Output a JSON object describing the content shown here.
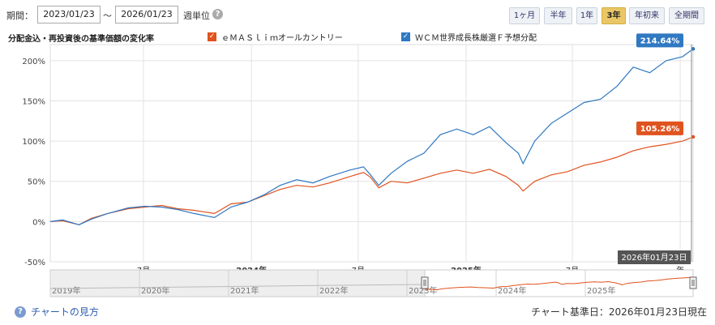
{
  "controls": {
    "period_label": "期間：",
    "start_date": "2023/01/23",
    "tilde": "～",
    "end_date": "2026/01/23",
    "unit_label": "週単位",
    "help_symbol": "?"
  },
  "range_buttons": [
    {
      "label": "1ヶ月",
      "active": false
    },
    {
      "label": "半年",
      "active": false
    },
    {
      "label": "1年",
      "active": false
    },
    {
      "label": "3年",
      "active": true
    },
    {
      "label": "年初来",
      "active": false
    },
    {
      "label": "全期間",
      "active": false
    }
  ],
  "chart_heading": "分配金込・再投資後の基準価額の変化率",
  "legend": [
    {
      "name": "ｅＭＡＳｌｉｍオールカントリー",
      "color": "#e0531f",
      "check": "✓"
    },
    {
      "name": "ＷＣＭ世界成長株厳選Ｆ予想分配",
      "color": "#2f78c2",
      "check": "✓"
    }
  ],
  "hover_date_label": "2026年01月23日",
  "navigator": {
    "year_labels": [
      "2019年",
      "2020年",
      "2021年",
      "2022年",
      "2023年",
      "2024年",
      "2025年"
    ]
  },
  "footer": {
    "help_link": "チャートの見方",
    "help_symbol": "?",
    "base_date": "チャート基準日：2026年01月23日現在"
  },
  "chart_data": {
    "type": "line",
    "title": "分配金込・再投資後の基準価額の変化率",
    "x_start": "2023-01-23",
    "x_end": "2026-01-23",
    "x_tick_labels": [
      {
        "date": "2023-07-01",
        "label": "7月",
        "bold": false
      },
      {
        "date": "2024-01-01",
        "label": "2024年",
        "bold": true
      },
      {
        "date": "2024-07-01",
        "label": "7月",
        "bold": false
      },
      {
        "date": "2025-01-01",
        "label": "2025年",
        "bold": true
      },
      {
        "date": "2025-07-01",
        "label": "7月",
        "bold": false
      },
      {
        "date": "2026-01-01",
        "label": "年",
        "bold": false
      }
    ],
    "y_ticks": [
      -50,
      0,
      50,
      100,
      150,
      200
    ],
    "y_tick_labels": [
      "-50%",
      "0%",
      "50%",
      "100%",
      "150%",
      "200%"
    ],
    "ylim": [
      -50,
      220
    ],
    "grid": true,
    "legend_position": "top",
    "series": [
      {
        "name": "ｅＭＡＳｌｉｍオールカントリー",
        "color": "#e0531f",
        "end_label": "105.26%",
        "points": [
          [
            "2023-01-23",
            0
          ],
          [
            "2023-02-13",
            1
          ],
          [
            "2023-03-13",
            -4
          ],
          [
            "2023-04-03",
            4
          ],
          [
            "2023-05-01",
            10
          ],
          [
            "2023-06-05",
            16
          ],
          [
            "2023-07-03",
            18
          ],
          [
            "2023-08-01",
            20
          ],
          [
            "2023-08-28",
            16
          ],
          [
            "2023-09-25",
            14
          ],
          [
            "2023-10-30",
            10
          ],
          [
            "2023-11-27",
            22
          ],
          [
            "2023-12-25",
            24
          ],
          [
            "2024-01-22",
            32
          ],
          [
            "2024-02-19",
            40
          ],
          [
            "2024-03-18",
            45
          ],
          [
            "2024-04-15",
            43
          ],
          [
            "2024-05-13",
            48
          ],
          [
            "2024-06-17",
            56
          ],
          [
            "2024-07-10",
            61
          ],
          [
            "2024-07-22",
            55
          ],
          [
            "2024-08-05",
            42
          ],
          [
            "2024-08-26",
            50
          ],
          [
            "2024-09-23",
            48
          ],
          [
            "2024-10-21",
            54
          ],
          [
            "2024-11-18",
            60
          ],
          [
            "2024-12-16",
            64
          ],
          [
            "2025-01-13",
            60
          ],
          [
            "2025-02-10",
            65
          ],
          [
            "2025-03-10",
            56
          ],
          [
            "2025-03-31",
            45
          ],
          [
            "2025-04-08",
            38
          ],
          [
            "2025-04-28",
            50
          ],
          [
            "2025-05-26",
            58
          ],
          [
            "2025-06-23",
            62
          ],
          [
            "2025-07-21",
            70
          ],
          [
            "2025-08-18",
            74
          ],
          [
            "2025-09-15",
            80
          ],
          [
            "2025-10-13",
            88
          ],
          [
            "2025-11-10",
            93
          ],
          [
            "2025-12-08",
            96
          ],
          [
            "2026-01-05",
            100
          ],
          [
            "2026-01-23",
            105.26
          ]
        ]
      },
      {
        "name": "ＷＣＭ世界成長株厳選Ｆ予想分配",
        "color": "#2f78c2",
        "end_label": "214.64%",
        "points": [
          [
            "2023-01-23",
            0
          ],
          [
            "2023-02-13",
            2
          ],
          [
            "2023-03-13",
            -4
          ],
          [
            "2023-04-03",
            3
          ],
          [
            "2023-05-01",
            10
          ],
          [
            "2023-06-05",
            17
          ],
          [
            "2023-07-03",
            19
          ],
          [
            "2023-08-01",
            18
          ],
          [
            "2023-08-28",
            15
          ],
          [
            "2023-09-25",
            10
          ],
          [
            "2023-10-30",
            5
          ],
          [
            "2023-11-27",
            18
          ],
          [
            "2023-12-25",
            24
          ],
          [
            "2024-01-22",
            33
          ],
          [
            "2024-02-19",
            45
          ],
          [
            "2024-03-18",
            52
          ],
          [
            "2024-04-15",
            48
          ],
          [
            "2024-05-13",
            56
          ],
          [
            "2024-06-17",
            64
          ],
          [
            "2024-07-10",
            68
          ],
          [
            "2024-07-22",
            58
          ],
          [
            "2024-08-05",
            45
          ],
          [
            "2024-08-26",
            60
          ],
          [
            "2024-09-23",
            75
          ],
          [
            "2024-10-21",
            85
          ],
          [
            "2024-11-18",
            108
          ],
          [
            "2024-12-16",
            115
          ],
          [
            "2025-01-13",
            108
          ],
          [
            "2025-02-10",
            118
          ],
          [
            "2025-03-10",
            98
          ],
          [
            "2025-03-31",
            85
          ],
          [
            "2025-04-08",
            72
          ],
          [
            "2025-04-28",
            100
          ],
          [
            "2025-05-26",
            122
          ],
          [
            "2025-06-23",
            135
          ],
          [
            "2025-07-21",
            148
          ],
          [
            "2025-08-18",
            152
          ],
          [
            "2025-09-15",
            168
          ],
          [
            "2025-10-13",
            192
          ],
          [
            "2025-11-10",
            185
          ],
          [
            "2025-12-08",
            200
          ],
          [
            "2026-01-05",
            205
          ],
          [
            "2026-01-23",
            214.64
          ]
        ]
      }
    ]
  }
}
